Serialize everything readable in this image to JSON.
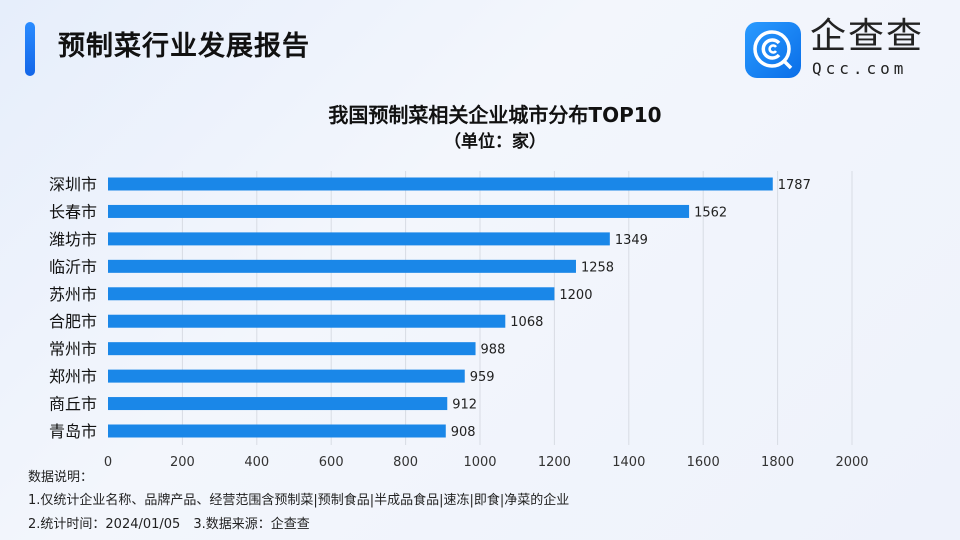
{
  "header": {
    "title": "预制菜行业发展报告",
    "logo": {
      "cn": "企查查",
      "en": "Qcc.com"
    }
  },
  "colors": {
    "bar": "#1a87e8",
    "accent": "#1a7cf0",
    "grid": "#d8dce4"
  },
  "chart_data": {
    "type": "bar",
    "orientation": "horizontal",
    "title": "我国预制菜相关企业城市分布TOP10",
    "subtitle": "（单位：家）",
    "categories": [
      "深圳市",
      "长春市",
      "潍坊市",
      "临沂市",
      "苏州市",
      "合肥市",
      "常州市",
      "郑州市",
      "商丘市",
      "青岛市"
    ],
    "values": [
      1787,
      1562,
      1349,
      1258,
      1200,
      1068,
      988,
      959,
      912,
      908
    ],
    "xlim": [
      0,
      2000
    ],
    "xticks": [
      "0",
      "200",
      "400",
      "600",
      "800",
      "1000",
      "1200",
      "1400",
      "1600",
      "1800",
      "2000"
    ],
    "grid": true,
    "data_labels": true
  },
  "notes": {
    "heading": "数据说明：",
    "line1": "1.仅统计企业名称、品牌产品、经营范围含预制菜|预制食品|半成品食品|速冻|即食|净菜的企业",
    "line2": "2.统计时间：2024/01/05　3.数据来源：企查查"
  }
}
